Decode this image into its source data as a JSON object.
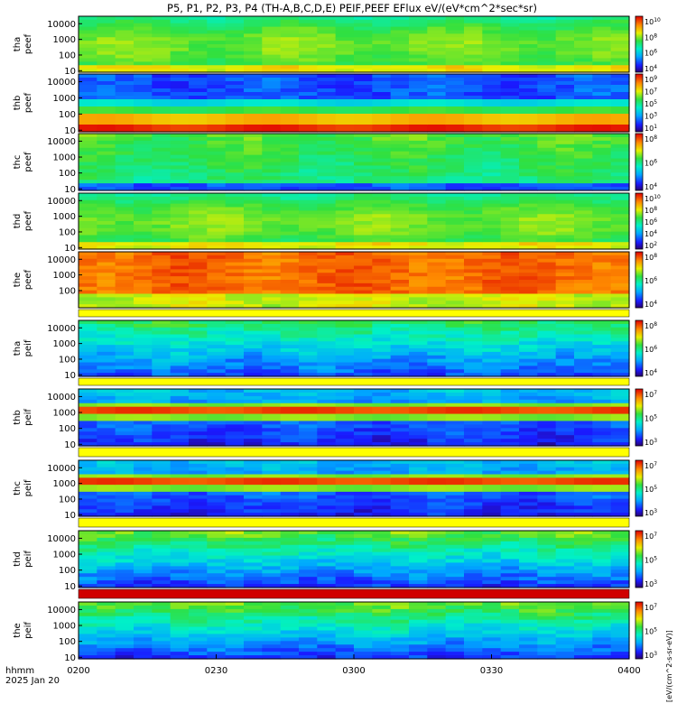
{
  "title": "P5, P1, P2, P3, P4 (TH-A,B,C,D,E) PEIF,PEEF EFlux eV/(eV*cm^2*sec*sr)",
  "time_axis": {
    "row1_label": "hhmm",
    "row2_label": "2025 Jan 20",
    "ticks": [
      "0200",
      "0230",
      "0300",
      "0330",
      "0400"
    ]
  },
  "colorbar_unit_text": "[eV/(cm^2-s-sr-eV)]",
  "chart_data": {
    "type": "heatmap",
    "x_range": [
      "0200",
      "0400"
    ],
    "y_scale": "log",
    "panels": [
      {
        "id": "tha-peef",
        "label_line1": "tha",
        "label_line2": "peef",
        "yticks": [
          "10",
          "100",
          "1000",
          "10000"
        ],
        "ylim": [
          8,
          30000
        ],
        "cb_ticks": [
          "10^4",
          "10^6",
          "10^8",
          "10^10"
        ],
        "palette": "green",
        "gap_after": false
      },
      {
        "id": "thb-peef",
        "label_line1": "thb",
        "label_line2": "peef",
        "yticks": [
          "10",
          "100",
          "1000",
          "10000"
        ],
        "ylim": [
          8,
          30000
        ],
        "cb_ticks": [
          "10^1",
          "10^3",
          "10^5",
          "10^7",
          "10^9"
        ],
        "palette": "bands",
        "gap_after": false
      },
      {
        "id": "thc-peef",
        "label_line1": "thc",
        "label_line2": "peef",
        "yticks": [
          "10",
          "100",
          "1000",
          "10000"
        ],
        "ylim": [
          8,
          30000
        ],
        "cb_ticks": [
          "10^4",
          "10^6",
          "10^8"
        ],
        "palette": "green-low",
        "gap_after": false
      },
      {
        "id": "thd-peef",
        "label_line1": "thd",
        "label_line2": "peef",
        "yticks": [
          "10",
          "100",
          "1000",
          "10000"
        ],
        "ylim": [
          8,
          30000
        ],
        "cb_ticks": [
          "10^2",
          "10^4",
          "10^6",
          "10^8",
          "10^10"
        ],
        "palette": "green",
        "gap_after": false
      },
      {
        "id": "the-peef",
        "label_line1": "the",
        "label_line2": "peef",
        "yticks": [
          "100",
          "1000",
          "10000"
        ],
        "ylim": [
          8,
          30000
        ],
        "cb_ticks": [
          "10^4",
          "10^6",
          "10^8"
        ],
        "palette": "red",
        "gap_after": true
      },
      {
        "id": "tha-peif",
        "label_line1": "tha",
        "label_line2": "peif",
        "yticks": [
          "10",
          "100",
          "1000",
          "10000"
        ],
        "ylim": [
          8,
          30000
        ],
        "cb_ticks": [
          "10^4",
          "10^6",
          "10^8"
        ],
        "palette": "ion-low",
        "gap_after": true
      },
      {
        "id": "thb-peif",
        "label_line1": "thb",
        "label_line2": "peif",
        "yticks": [
          "10",
          "100",
          "1000",
          "10000"
        ],
        "ylim": [
          8,
          30000
        ],
        "cb_ticks": [
          "10^3",
          "10^5",
          "10^7"
        ],
        "palette": "ion-band",
        "gap_after": true
      },
      {
        "id": "thc-peif",
        "label_line1": "thc",
        "label_line2": "peif",
        "yticks": [
          "10",
          "100",
          "1000",
          "10000"
        ],
        "ylim": [
          8,
          30000
        ],
        "cb_ticks": [
          "10^3",
          "10^5",
          "10^7"
        ],
        "palette": "ion-band",
        "gap_after": true
      },
      {
        "id": "thd-peif",
        "label_line1": "thd",
        "label_line2": "peif",
        "yticks": [
          "10",
          "100",
          "1000",
          "10000"
        ],
        "ylim": [
          8,
          30000
        ],
        "cb_ticks": [
          "10^3",
          "10^5",
          "10^7"
        ],
        "palette": "ion-mid",
        "gap_after": true
      },
      {
        "id": "the-peif",
        "label_line1": "the",
        "label_line2": "peif",
        "yticks": [
          "10",
          "100",
          "1000",
          "10000"
        ],
        "ylim": [
          8,
          30000
        ],
        "cb_ticks": [
          "10^3",
          "10^5",
          "10^7"
        ],
        "palette": "ion-mid",
        "gap_after": false
      }
    ]
  }
}
